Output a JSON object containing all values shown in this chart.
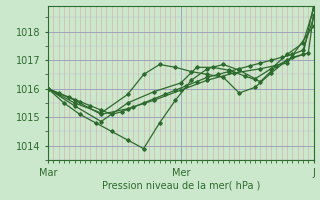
{
  "xlabel": "Pression niveau de la mer( hPa )",
  "background_color": "#cce8cc",
  "line_color": "#2d6a2d",
  "ylim": [
    1013.5,
    1018.9
  ],
  "yticks": [
    1014,
    1015,
    1016,
    1017,
    1018
  ],
  "xlim": [
    0,
    50
  ],
  "xtick_positions": [
    0,
    25,
    50
  ],
  "xtick_labels": [
    "Mar",
    "Mer",
    "J"
  ],
  "series": [
    [
      0,
      1016.0,
      2,
      1015.85,
      4,
      1015.7,
      6,
      1015.55,
      8,
      1015.4,
      10,
      1015.25,
      12,
      1015.1,
      14,
      1015.2,
      16,
      1015.35,
      18,
      1015.5,
      20,
      1015.65,
      22,
      1015.8,
      24,
      1015.95,
      26,
      1016.1,
      28,
      1016.25,
      30,
      1016.4,
      32,
      1016.5,
      34,
      1016.6,
      36,
      1016.7,
      38,
      1016.8,
      40,
      1016.9,
      42,
      1017.0,
      44,
      1017.1,
      46,
      1017.2,
      48,
      1017.35,
      50,
      1018.5
    ],
    [
      0,
      1016.0,
      5,
      1015.6,
      10,
      1015.1,
      15,
      1015.3,
      20,
      1015.6,
      25,
      1015.95,
      30,
      1016.3,
      35,
      1016.55,
      40,
      1016.7,
      45,
      1016.9,
      50,
      1018.2
    ],
    [
      0,
      1016.0,
      3,
      1015.5,
      6,
      1015.1,
      9,
      1014.8,
      12,
      1014.5,
      15,
      1014.2,
      18,
      1013.9,
      21,
      1014.8,
      24,
      1015.6,
      27,
      1016.3,
      30,
      1016.7,
      33,
      1016.85,
      36,
      1016.65,
      39,
      1016.35,
      42,
      1016.7,
      45,
      1017.2,
      48,
      1017.6,
      50,
      1018.8
    ],
    [
      0,
      1016.0,
      5,
      1015.5,
      10,
      1015.15,
      15,
      1015.8,
      18,
      1016.5,
      21,
      1016.85,
      24,
      1016.75,
      27,
      1016.6,
      30,
      1016.5,
      33,
      1016.4,
      36,
      1015.85,
      39,
      1016.05,
      42,
      1016.55,
      45,
      1017.0,
      48,
      1017.2,
      50,
      1018.9
    ],
    [
      0,
      1016.0,
      5,
      1015.4,
      10,
      1014.85,
      15,
      1015.5,
      20,
      1015.9,
      25,
      1016.2,
      28,
      1016.75,
      31,
      1016.75,
      34,
      1016.65,
      37,
      1016.45,
      40,
      1016.25,
      43,
      1016.8,
      46,
      1017.1,
      49,
      1017.25,
      50,
      1018.6
    ]
  ]
}
